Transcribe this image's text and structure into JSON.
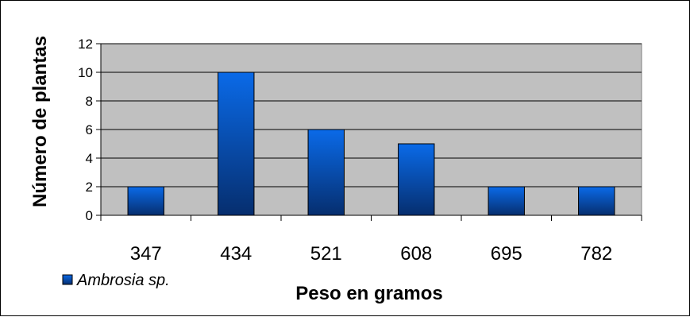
{
  "chart_data": {
    "type": "bar",
    "categories": [
      "347",
      "434",
      "521",
      "608",
      "695",
      "782"
    ],
    "series": [
      {
        "name": "Ambrosia sp.",
        "values": [
          2,
          10,
          6,
          5,
          2,
          2
        ]
      }
    ],
    "xlabel": "Peso en gramos",
    "ylabel": "Número de plantas",
    "ylim": [
      0,
      12
    ],
    "yticks": [
      0,
      2,
      4,
      6,
      8,
      10,
      12
    ],
    "grid": true,
    "legend": "bottom-left",
    "colors": {
      "plot_background": "#c0c0c0",
      "bar_top": "#0a6ae8",
      "bar_bottom": "#062e6e",
      "gridline": "#000000"
    }
  }
}
